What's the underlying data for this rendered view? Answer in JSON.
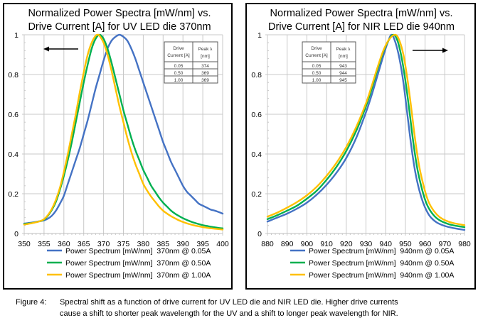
{
  "figure": {
    "caption_label": "Figure 4:",
    "caption_lines": [
      "Spectral shift as a function of drive current for UV LED die and NIR LED die. Higher drive currents",
      "cause a shift to shorter peak wavelength for the UV and a shift to longer peak wavelength for NIR."
    ]
  },
  "colors": {
    "blue": "#4472C4",
    "green": "#00B050",
    "yellow": "#FFC000",
    "arrow": "#000000"
  },
  "chart_data": [
    {
      "id": "uv",
      "type": "line",
      "title_lines": [
        "Normalized Power Spectra [mW/nm] vs.",
        "Drive Current [A] for UV LED die 370nm"
      ],
      "xlabel": "",
      "ylabel": "",
      "xlim": [
        350,
        400
      ],
      "ylim": [
        0,
        1
      ],
      "x_ticks": [
        "350",
        "355",
        "360",
        "365",
        "370",
        "375",
        "380",
        "385",
        "390",
        "395",
        "400"
      ],
      "y_ticks": [
        "0",
        "0.2",
        "0.4",
        "0.6",
        "0.8",
        "1"
      ],
      "grid": true,
      "legend_position": "bottom",
      "arrow_direction": "left",
      "table": {
        "headers": [
          "Drive Current [A]",
          "Peak λ [nm]"
        ],
        "rows": [
          [
            "0.05",
            "374"
          ],
          [
            "0.50",
            "369"
          ],
          [
            "1.00",
            "369"
          ]
        ]
      },
      "series": [
        {
          "name": "Power Spectrum [mW/nm]  370nm @ 0.05A",
          "color": "blue",
          "points": [
            [
              350,
              0.05
            ],
            [
              352,
              0.055
            ],
            [
              354,
              0.062
            ],
            [
              355,
              0.066
            ],
            [
              356,
              0.075
            ],
            [
              357,
              0.09
            ],
            [
              358,
              0.115
            ],
            [
              359,
              0.15
            ],
            [
              360,
              0.19
            ],
            [
              361,
              0.25
            ],
            [
              362,
              0.31
            ],
            [
              363,
              0.37
            ],
            [
              364,
              0.43
            ],
            [
              365,
              0.5
            ],
            [
              366,
              0.57
            ],
            [
              367,
              0.65
            ],
            [
              368,
              0.73
            ],
            [
              369,
              0.8
            ],
            [
              370,
              0.87
            ],
            [
              371,
              0.93
            ],
            [
              372,
              0.97
            ],
            [
              373,
              0.99
            ],
            [
              374,
              1.0
            ],
            [
              375,
              0.99
            ],
            [
              376,
              0.97
            ],
            [
              377,
              0.93
            ],
            [
              378,
              0.88
            ],
            [
              379,
              0.82
            ],
            [
              380,
              0.76
            ],
            [
              381,
              0.7
            ],
            [
              382,
              0.64
            ],
            [
              383,
              0.58
            ],
            [
              384,
              0.52
            ],
            [
              385,
              0.46
            ],
            [
              386,
              0.41
            ],
            [
              387,
              0.36
            ],
            [
              388,
              0.32
            ],
            [
              389,
              0.28
            ],
            [
              390,
              0.24
            ],
            [
              391,
              0.21
            ],
            [
              392,
              0.19
            ],
            [
              393,
              0.17
            ],
            [
              394,
              0.15
            ],
            [
              395,
              0.14
            ],
            [
              396,
              0.13
            ],
            [
              397,
              0.12
            ],
            [
              398,
              0.115
            ],
            [
              399,
              0.108
            ],
            [
              400,
              0.1
            ]
          ]
        },
        {
          "name": "Power Spectrum [mW/nm]  370nm @ 0.50A",
          "color": "green",
          "points": [
            [
              350,
              0.048
            ],
            [
              352,
              0.053
            ],
            [
              354,
              0.062
            ],
            [
              355,
              0.07
            ],
            [
              356,
              0.09
            ],
            [
              357,
              0.12
            ],
            [
              358,
              0.16
            ],
            [
              359,
              0.22
            ],
            [
              360,
              0.29
            ],
            [
              361,
              0.37
            ],
            [
              362,
              0.46
            ],
            [
              363,
              0.56
            ],
            [
              364,
              0.66
            ],
            [
              365,
              0.76
            ],
            [
              366,
              0.85
            ],
            [
              367,
              0.93
            ],
            [
              368,
              0.98
            ],
            [
              369,
              1.0
            ],
            [
              370,
              0.98
            ],
            [
              371,
              0.93
            ],
            [
              372,
              0.86
            ],
            [
              373,
              0.78
            ],
            [
              374,
              0.7
            ],
            [
              375,
              0.62
            ],
            [
              376,
              0.55
            ],
            [
              377,
              0.48
            ],
            [
              378,
              0.42
            ],
            [
              379,
              0.37
            ],
            [
              380,
              0.32
            ],
            [
              381,
              0.28
            ],
            [
              382,
              0.24
            ],
            [
              383,
              0.21
            ],
            [
              384,
              0.18
            ],
            [
              385,
              0.155
            ],
            [
              386,
              0.135
            ],
            [
              387,
              0.115
            ],
            [
              388,
              0.1
            ],
            [
              389,
              0.088
            ],
            [
              390,
              0.077
            ],
            [
              391,
              0.068
            ],
            [
              392,
              0.06
            ],
            [
              393,
              0.053
            ],
            [
              394,
              0.047
            ],
            [
              395,
              0.042
            ],
            [
              396,
              0.038
            ],
            [
              397,
              0.034
            ],
            [
              398,
              0.031
            ],
            [
              399,
              0.028
            ],
            [
              400,
              0.026
            ]
          ]
        },
        {
          "name": "Power Spectrum [mW/nm]  370nm @ 1.00A",
          "color": "yellow",
          "points": [
            [
              350,
              0.045
            ],
            [
              352,
              0.052
            ],
            [
              354,
              0.062
            ],
            [
              355,
              0.072
            ],
            [
              356,
              0.093
            ],
            [
              357,
              0.125
            ],
            [
              358,
              0.17
            ],
            [
              359,
              0.23
            ],
            [
              360,
              0.31
            ],
            [
              361,
              0.4
            ],
            [
              362,
              0.5
            ],
            [
              363,
              0.6
            ],
            [
              364,
              0.71
            ],
            [
              365,
              0.81
            ],
            [
              366,
              0.9
            ],
            [
              367,
              0.96
            ],
            [
              368,
              0.995
            ],
            [
              368.6,
              1.0
            ],
            [
              369,
              0.995
            ],
            [
              370,
              0.96
            ],
            [
              371,
              0.9
            ],
            [
              372,
              0.82
            ],
            [
              373,
              0.73
            ],
            [
              374,
              0.64
            ],
            [
              375,
              0.56
            ],
            [
              376,
              0.48
            ],
            [
              377,
              0.41
            ],
            [
              378,
              0.35
            ],
            [
              379,
              0.3
            ],
            [
              380,
              0.25
            ],
            [
              381,
              0.215
            ],
            [
              382,
              0.185
            ],
            [
              383,
              0.16
            ],
            [
              384,
              0.135
            ],
            [
              385,
              0.115
            ],
            [
              386,
              0.1
            ],
            [
              387,
              0.087
            ],
            [
              388,
              0.076
            ],
            [
              389,
              0.066
            ],
            [
              390,
              0.058
            ],
            [
              391,
              0.051
            ],
            [
              392,
              0.045
            ],
            [
              393,
              0.04
            ],
            [
              394,
              0.036
            ],
            [
              395,
              0.032
            ],
            [
              396,
              0.029
            ],
            [
              397,
              0.026
            ],
            [
              398,
              0.024
            ],
            [
              399,
              0.022
            ],
            [
              400,
              0.02
            ]
          ]
        }
      ]
    },
    {
      "id": "nir",
      "type": "line",
      "title_lines": [
        "Normalized Power Spectra [mW/nm] vs.",
        "Drive Current [A] for NIR LED die 940nm"
      ],
      "xlabel": "",
      "ylabel": "",
      "xlim": [
        880,
        980
      ],
      "ylim": [
        0,
        1
      ],
      "x_ticks": [
        "880",
        "890",
        "900",
        "910",
        "920",
        "930",
        "940",
        "950",
        "960",
        "970",
        "980"
      ],
      "y_ticks": [
        "0",
        "0.2",
        "0.4",
        "0.6",
        "0.8",
        "1"
      ],
      "grid": true,
      "legend_position": "bottom",
      "arrow_direction": "right",
      "table": {
        "headers": [
          "Drive Current [A]",
          "Peak λ [nm]"
        ],
        "rows": [
          [
            "0.05",
            "943"
          ],
          [
            "0.50",
            "944"
          ],
          [
            "1.00",
            "945"
          ]
        ]
      },
      "series": [
        {
          "name": "Power Spectrum [mW/nm]  940nm @ 0.05A",
          "color": "blue",
          "points": [
            [
              880,
              0.06
            ],
            [
              885,
              0.08
            ],
            [
              890,
              0.1
            ],
            [
              895,
              0.125
            ],
            [
              900,
              0.155
            ],
            [
              905,
              0.195
            ],
            [
              910,
              0.245
            ],
            [
              915,
              0.305
            ],
            [
              920,
              0.38
            ],
            [
              925,
              0.48
            ],
            [
              930,
              0.61
            ],
            [
              933,
              0.7
            ],
            [
              936,
              0.8
            ],
            [
              939,
              0.9
            ],
            [
              941,
              0.96
            ],
            [
              943,
              1.0
            ],
            [
              945,
              0.96
            ],
            [
              947,
              0.88
            ],
            [
              949,
              0.76
            ],
            [
              951,
              0.6
            ],
            [
              953,
              0.44
            ],
            [
              955,
              0.31
            ],
            [
              957,
              0.22
            ],
            [
              959,
              0.155
            ],
            [
              961,
              0.11
            ],
            [
              963,
              0.08
            ],
            [
              966,
              0.055
            ],
            [
              970,
              0.038
            ],
            [
              975,
              0.026
            ],
            [
              980,
              0.018
            ]
          ]
        },
        {
          "name": "Power Spectrum [mW/nm]  940nm @ 0.50A",
          "color": "green",
          "points": [
            [
              880,
              0.072
            ],
            [
              885,
              0.092
            ],
            [
              890,
              0.115
            ],
            [
              895,
              0.14
            ],
            [
              900,
              0.175
            ],
            [
              905,
              0.215
            ],
            [
              910,
              0.27
            ],
            [
              915,
              0.335
            ],
            [
              920,
              0.415
            ],
            [
              925,
              0.515
            ],
            [
              930,
              0.64
            ],
            [
              933,
              0.73
            ],
            [
              936,
              0.83
            ],
            [
              939,
              0.92
            ],
            [
              942,
              0.98
            ],
            [
              944,
              1.0
            ],
            [
              946,
              0.97
            ],
            [
              948,
              0.89
            ],
            [
              950,
              0.77
            ],
            [
              952,
              0.62
            ],
            [
              954,
              0.46
            ],
            [
              956,
              0.33
            ],
            [
              958,
              0.24
            ],
            [
              960,
              0.17
            ],
            [
              962,
              0.125
            ],
            [
              965,
              0.085
            ],
            [
              968,
              0.063
            ],
            [
              972,
              0.047
            ],
            [
              976,
              0.038
            ],
            [
              980,
              0.032
            ]
          ]
        },
        {
          "name": "Power Spectrum [mW/nm]  940nm @ 1.00A",
          "color": "yellow",
          "points": [
            [
              880,
              0.085
            ],
            [
              885,
              0.105
            ],
            [
              890,
              0.13
            ],
            [
              895,
              0.158
            ],
            [
              900,
              0.192
            ],
            [
              905,
              0.235
            ],
            [
              910,
              0.29
            ],
            [
              915,
              0.355
            ],
            [
              920,
              0.435
            ],
            [
              925,
              0.535
            ],
            [
              930,
              0.655
            ],
            [
              933,
              0.745
            ],
            [
              936,
              0.84
            ],
            [
              939,
              0.925
            ],
            [
              942,
              0.98
            ],
            [
              945,
              1.0
            ],
            [
              947,
              0.97
            ],
            [
              949,
              0.9
            ],
            [
              951,
              0.78
            ],
            [
              953,
              0.63
            ],
            [
              955,
              0.47
            ],
            [
              957,
              0.34
            ],
            [
              959,
              0.25
            ],
            [
              961,
              0.18
            ],
            [
              963,
              0.135
            ],
            [
              966,
              0.095
            ],
            [
              969,
              0.072
            ],
            [
              973,
              0.056
            ],
            [
              977,
              0.047
            ],
            [
              980,
              0.042
            ]
          ]
        }
      ]
    }
  ]
}
